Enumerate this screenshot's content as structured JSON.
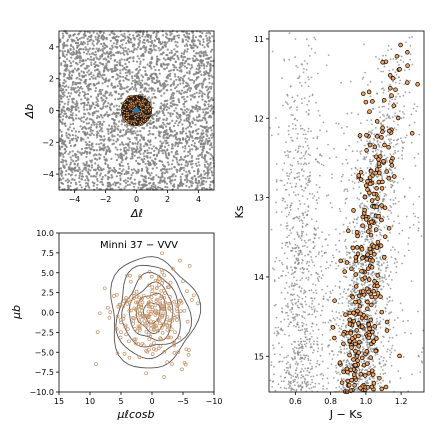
{
  "chart_data": [
    {
      "type": "scatter",
      "panel": "sky-position",
      "xlabel": "Δℓ",
      "ylabel": "Δb",
      "xlim": [
        -5,
        5
      ],
      "ylim": [
        -5,
        5
      ],
      "xticks": [
        -4,
        -2,
        0,
        2,
        4
      ],
      "yticks": [
        -4,
        -2,
        0,
        2,
        4
      ],
      "colors": {
        "field": "#808080",
        "member_face": "#f4a460",
        "member_edge": "#000000",
        "cluster_center": "#1f77b4"
      },
      "series": [
        {
          "role": "field",
          "distribution": "uniform",
          "xrange": [
            -5,
            5
          ],
          "yrange": [
            -5,
            5
          ]
        },
        {
          "role": "members",
          "shape": "disk",
          "center": [
            0,
            0
          ],
          "radius": 1.0
        }
      ]
    },
    {
      "type": "scatter",
      "panel": "proper-motion",
      "annotation": "Minni 37  −  VVV",
      "xlabel": "μℓcosb",
      "ylabel": "μb",
      "xlim": [
        15,
        -10
      ],
      "ylim": [
        -10,
        10
      ],
      "xticks": [
        15,
        10,
        5,
        0,
        -5,
        -10
      ],
      "yticks": [
        -10.0,
        -7.5,
        -5.0,
        -2.5,
        0.0,
        2.5,
        5.0,
        7.5,
        10.0
      ],
      "center": [
        0,
        0
      ],
      "contour_radii": [
        1.3,
        2.4,
        3.5,
        4.6,
        5.8,
        7.0
      ],
      "colors": {
        "points": "#c8956b",
        "contours": "#555555"
      }
    },
    {
      "type": "scatter",
      "panel": "cmd",
      "xlabel": "J − Ks",
      "ylabel": "Ks",
      "xlim": [
        0.45,
        1.33
      ],
      "ylim": [
        15.45,
        10.9
      ],
      "xticks": [
        0.6,
        0.8,
        1.0,
        1.2
      ],
      "yticks": [
        11,
        12,
        13,
        14,
        15
      ],
      "colors": {
        "field": "#808080",
        "member_face": "#f4a460",
        "member_edge": "#000000"
      },
      "series": [
        {
          "role": "field-blue-sequence",
          "x_center": 0.63,
          "x_spread": 0.07
        },
        {
          "role": "field-red-giant-branch",
          "points": [
            [
              1.2,
              11.0
            ],
            [
              1.1,
              12.0
            ],
            [
              1.04,
              13.0
            ],
            [
              0.99,
              14.0
            ],
            [
              0.95,
              15.4
            ]
          ],
          "x_spread": 0.07
        },
        {
          "role": "members",
          "points": [
            [
              1.2,
              11.0
            ],
            [
              1.1,
              12.0
            ],
            [
              1.04,
              13.0
            ],
            [
              0.99,
              14.0
            ],
            [
              0.95,
              15.4
            ]
          ],
          "x_spread": 0.06
        }
      ]
    }
  ]
}
